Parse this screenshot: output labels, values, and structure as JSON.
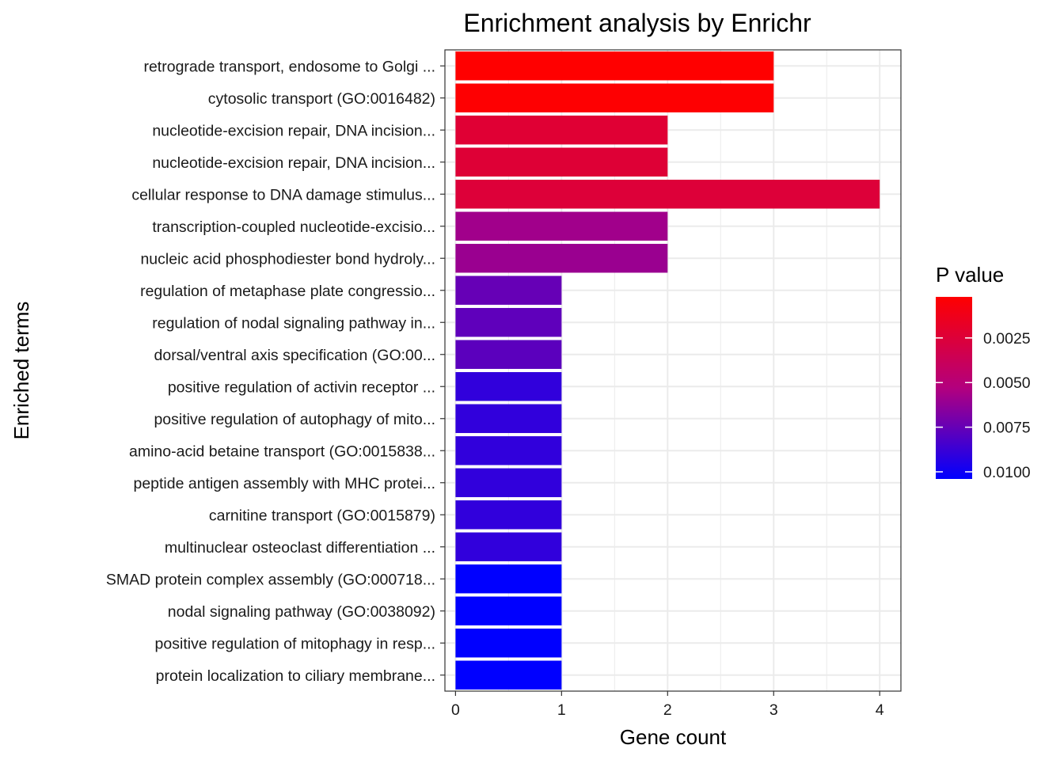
{
  "chart_data": {
    "type": "bar",
    "orientation": "horizontal",
    "title": "Enrichment analysis by Enrichr",
    "xlabel": "Gene count",
    "ylabel": "Enriched terms",
    "xlim": [
      -0.1,
      4.2
    ],
    "xticks": [
      "0",
      "1",
      "2",
      "3",
      "4"
    ],
    "grid": true,
    "categories": [
      "retrograde transport, endosome to Golgi ...",
      "cytosolic transport (GO:0016482)",
      "nucleotide-excision repair, DNA incision...",
      "nucleotide-excision repair, DNA incision...",
      "cellular response to DNA damage stimulus...",
      "transcription-coupled nucleotide-excisio...",
      "nucleic acid phosphodiester bond hydroly...",
      "regulation of metaphase plate congressio...",
      "regulation of nodal signaling pathway in...",
      "dorsal/ventral axis specification (GO:00...",
      "positive regulation of activin receptor ...",
      "positive regulation of autophagy of mito...",
      "amino-acid betaine transport (GO:0015838...",
      "peptide antigen assembly with MHC protei...",
      "carnitine transport (GO:0015879)",
      "multinuclear osteoclast differentiation ...",
      "SMAD protein complex assembly (GO:000718...",
      "nodal signaling pathway (GO:0038092)",
      "positive regulation of mitophagy in resp...",
      "protein localization to ciliary membrane..."
    ],
    "values": [
      3,
      3,
      2,
      2,
      4,
      2,
      2,
      1,
      1,
      1,
      1,
      1,
      1,
      1,
      1,
      1,
      1,
      1,
      1,
      1
    ],
    "p_values": [
      0.0002,
      0.0003,
      0.0023,
      0.0024,
      0.0025,
      0.0058,
      0.006,
      0.0075,
      0.0077,
      0.0078,
      0.009,
      0.009,
      0.009,
      0.009,
      0.009,
      0.009,
      0.0104,
      0.0104,
      0.0104,
      0.0104
    ],
    "legend": {
      "title": "P value",
      "placement": "right",
      "ticks": [
        0.0025,
        0.005,
        0.0075,
        0.01
      ],
      "tick_labels": [
        "0.0025",
        "0.0050",
        "0.0075",
        "0.0100"
      ],
      "range": [
        0.0002,
        0.0104
      ],
      "color_low": "#FF0000",
      "color_high": "#0000FF"
    }
  }
}
